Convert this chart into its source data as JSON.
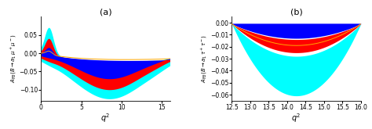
{
  "panel_a": {
    "title": "(a)",
    "xlabel": "$q^2$",
    "ylabel": "$A_{\\mathrm{FB}}(B\\to a_1\\,\\mu^+\\mu^-)$",
    "xlim": [
      0,
      16
    ],
    "ylim": [
      -0.13,
      0.1
    ],
    "xticks": [
      0,
      5,
      10,
      15
    ],
    "yticks": [
      -0.1,
      -0.05,
      0.0,
      0.05
    ],
    "q2_min": 0.05,
    "q2_max": 16.0,
    "n_points": 400
  },
  "panel_b": {
    "title": "(b)",
    "xlabel": "$q^2$",
    "ylabel": "$A_{\\mathrm{FB}}(B\\to a_1\\,\\tau^+\\tau^-)$",
    "xlim": [
      12.5,
      16.0
    ],
    "ylim": [
      -0.065,
      0.005
    ],
    "xticks": [
      12.5,
      13.0,
      13.5,
      14.0,
      14.5,
      15.0,
      15.5,
      16.0
    ],
    "yticks": [
      0.0,
      -0.01,
      -0.02,
      -0.03,
      -0.04,
      -0.05,
      -0.06
    ],
    "q2_min": 12.5,
    "q2_max": 16.0,
    "n_points": 300
  },
  "colors": {
    "cyan": "#00FFFF",
    "red": "#FF0000",
    "blue": "#0000FF",
    "orange": "#FFA500",
    "white": "#FFFFFF"
  }
}
